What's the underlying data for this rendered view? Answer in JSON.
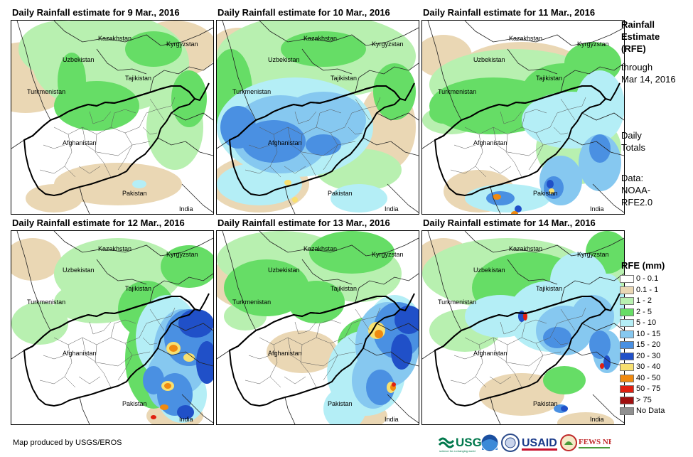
{
  "panels": [
    {
      "title": "Daily Rainfall estimate for 9 Mar., 2016",
      "rain_level": "light"
    },
    {
      "title": "Daily Rainfall estimate for 10 Mar., 2016",
      "rain_level": "moderate-widespread"
    },
    {
      "title": "Daily Rainfall estimate for 11 Mar., 2016",
      "rain_level": "moderate-east"
    },
    {
      "title": "Daily Rainfall estimate for 12 Mar., 2016",
      "rain_level": "heavy-east"
    },
    {
      "title": "Daily Rainfall estimate for 13 Mar., 2016",
      "rain_level": "heavy-east"
    },
    {
      "title": "Daily Rainfall estimate for 14 Mar., 2016",
      "rain_level": "moderate-northeast"
    }
  ],
  "map_labels": {
    "kazakhstan": "Kazakhstan",
    "kyrgyzstan": "Kyrgyzstan",
    "uzbekistan": "Uzbekistan",
    "tajikistan": "Tajikistan",
    "turkmenistan": "Turkmenistan",
    "afghanistan": "Afghanistan",
    "pakistan": "Pakistan",
    "india": "India"
  },
  "sidebar": {
    "title_lines": [
      "Rainfall",
      "Estimate",
      "(RFE)"
    ],
    "through_lines": [
      "through",
      "Mar 14, 2016"
    ],
    "daily_lines": [
      "Daily",
      "Totals"
    ],
    "data_lines": [
      "Data:",
      "NOAA-",
      "RFE2.0"
    ]
  },
  "legend": {
    "title": "RFE (mm)",
    "items": [
      {
        "label": "0 - 0.1",
        "color": "#ffffff"
      },
      {
        "label": "0.1 - 1",
        "color": "#ead7b4"
      },
      {
        "label": "1 - 2",
        "color": "#b8f0b0"
      },
      {
        "label": "2 - 5",
        "color": "#66dd66"
      },
      {
        "label": "5 - 10",
        "color": "#b4eef6"
      },
      {
        "label": "10 - 15",
        "color": "#86c8f0"
      },
      {
        "label": "15 - 20",
        "color": "#4a90e2"
      },
      {
        "label": "20 - 30",
        "color": "#2050c8"
      },
      {
        "label": "30 - 40",
        "color": "#f8e070"
      },
      {
        "label": "40 - 50",
        "color": "#f08a10"
      },
      {
        "label": "50 - 75",
        "color": "#e02010"
      },
      {
        "label": "> 75",
        "color": "#a01010"
      },
      {
        "label": "No Data",
        "color": "#909090"
      }
    ]
  },
  "footer": {
    "credit": "Map produced by USGS/EROS",
    "logos": [
      "USGS",
      "NOAA",
      "DOS",
      "USAID",
      "FEWS NET"
    ]
  }
}
